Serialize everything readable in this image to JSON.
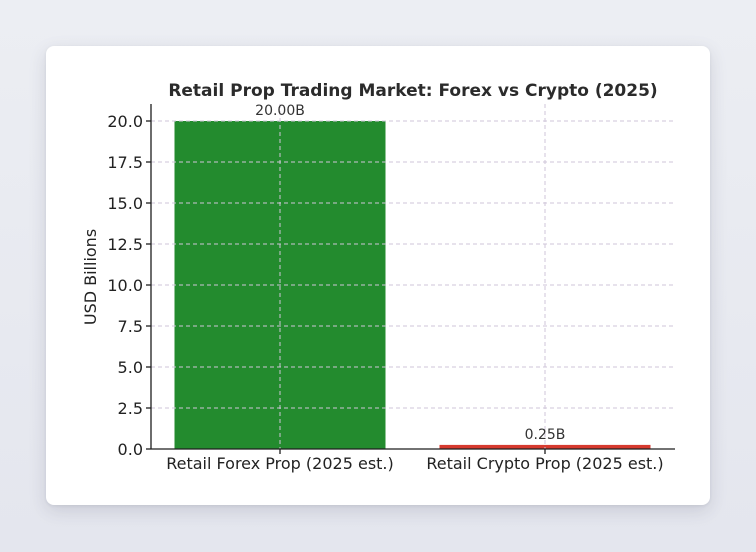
{
  "chart_data": {
    "type": "bar",
    "title": "Retail Prop Trading Market: Forex vs Crypto (2025)",
    "xlabel": "",
    "ylabel": "USD Billions",
    "categories": [
      "Retail Forex Prop (2025 est.)",
      "Retail Crypto Prop (2025 est.)"
    ],
    "values": [
      20.0,
      0.25
    ],
    "bar_labels": [
      "20.00B",
      "0.25B"
    ],
    "colors": [
      "#238b2e",
      "#d63a2f"
    ],
    "ylim": [
      0,
      21
    ],
    "yticks": [
      0.0,
      2.5,
      5.0,
      7.5,
      10.0,
      12.5,
      15.0,
      17.5,
      20.0
    ],
    "ytick_labels": [
      "0.0",
      "2.5",
      "5.0",
      "7.5",
      "10.0",
      "12.5",
      "15.0",
      "17.5",
      "20.0"
    ],
    "grid": true,
    "legend": null
  }
}
